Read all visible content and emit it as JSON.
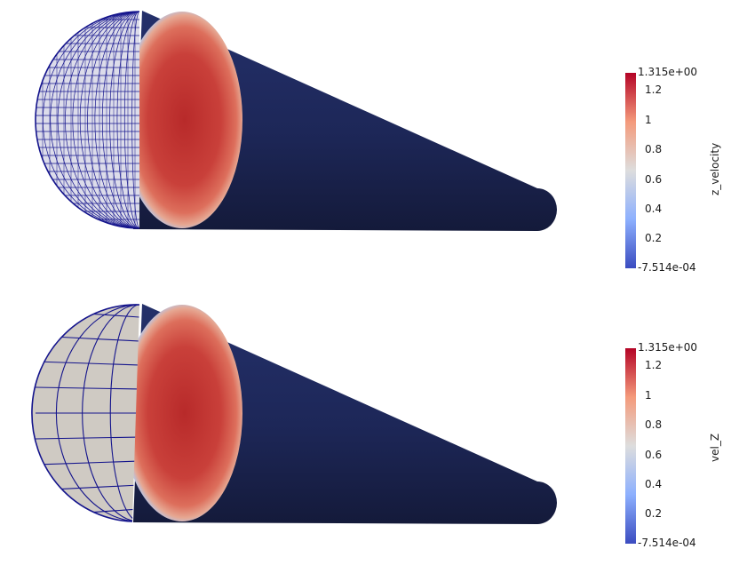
{
  "views": [
    {
      "name": "top-view",
      "scalar_name": "z_velocity",
      "range": [
        "-7.514e-04",
        "1.315e+00"
      ],
      "range_values": [
        -0.0007514,
        1.315
      ],
      "ticks": [
        {
          "value": 0.2,
          "label": "0.2"
        },
        {
          "value": 0.4,
          "label": "0.4"
        },
        {
          "value": 0.6,
          "label": "0.6"
        },
        {
          "value": 0.8,
          "label": "0.8"
        },
        {
          "value": 1.0,
          "label": "1"
        },
        {
          "value": 1.2,
          "label": "1.2"
        }
      ],
      "mesh": "fine"
    },
    {
      "name": "bottom-view",
      "scalar_name": "vel_Z",
      "range": [
        "-7.514e-04",
        "1.315e+00"
      ],
      "range_values": [
        -0.0007514,
        1.315
      ],
      "ticks": [
        {
          "value": 0.2,
          "label": "0.2"
        },
        {
          "value": 0.4,
          "label": "0.4"
        },
        {
          "value": 0.6,
          "label": "0.6"
        },
        {
          "value": 0.8,
          "label": "0.8"
        },
        {
          "value": 1.0,
          "label": "1"
        },
        {
          "value": 1.2,
          "label": "1.2"
        }
      ],
      "mesh": "coarse"
    }
  ],
  "colors": {
    "cool_warm_low": "#3b4cc0",
    "cool_warm_mid": "#dddddd",
    "cool_warm_high": "#b40426",
    "pipe_body": "#1c2552",
    "mesh_line": "#14148c",
    "mesh_fill": "#cfcac3"
  }
}
